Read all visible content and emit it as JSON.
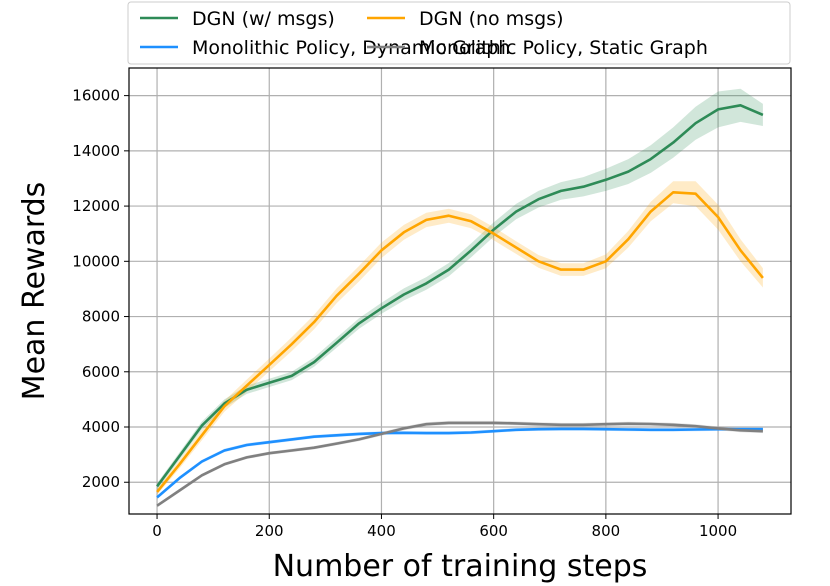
{
  "chart_data": {
    "type": "line",
    "title": "",
    "xlabel": "Number of training steps",
    "ylabel": "Mean Rewards",
    "xlim": [
      -50,
      1130
    ],
    "ylim": [
      850,
      17000
    ],
    "xticks": [
      0,
      200,
      400,
      600,
      800,
      1000
    ],
    "yticks": [
      2000,
      4000,
      6000,
      8000,
      10000,
      12000,
      14000,
      16000
    ],
    "grid": true,
    "legend_position": "top",
    "series": [
      {
        "name": "DGN (w/ msgs)",
        "color": "#2e8b57",
        "x": [
          0,
          40,
          80,
          120,
          160,
          200,
          240,
          280,
          320,
          360,
          400,
          440,
          480,
          520,
          560,
          600,
          640,
          680,
          720,
          760,
          800,
          840,
          880,
          920,
          960,
          1000,
          1040,
          1080
        ],
        "y": [
          1850,
          2950,
          4050,
          4850,
          5350,
          5600,
          5850,
          6350,
          7050,
          7750,
          8300,
          8800,
          9200,
          9700,
          10400,
          11150,
          11800,
          12250,
          12550,
          12700,
          12950,
          13250,
          13700,
          14300,
          15000,
          15500,
          15650,
          15300
        ],
        "band": [
          120,
          130,
          150,
          150,
          150,
          150,
          150,
          170,
          180,
          190,
          200,
          220,
          230,
          240,
          250,
          260,
          280,
          300,
          320,
          350,
          400,
          450,
          500,
          550,
          600,
          650,
          600,
          400
        ]
      },
      {
        "name": "DGN (no msgs)",
        "color": "#ffa500",
        "x": [
          0,
          40,
          80,
          120,
          160,
          200,
          240,
          280,
          320,
          360,
          400,
          440,
          480,
          520,
          560,
          600,
          640,
          680,
          720,
          760,
          800,
          840,
          880,
          920,
          960,
          1000,
          1040,
          1080
        ],
        "y": [
          1650,
          2650,
          3700,
          4750,
          5500,
          6250,
          7000,
          7800,
          8750,
          9550,
          10400,
          11050,
          11500,
          11650,
          11450,
          11000,
          10500,
          10000,
          9700,
          9700,
          10000,
          10800,
          11800,
          12500,
          12450,
          11600,
          10400,
          9400
        ],
        "band": [
          100,
          150,
          180,
          200,
          220,
          230,
          250,
          260,
          270,
          280,
          280,
          270,
          260,
          250,
          250,
          240,
          230,
          230,
          230,
          230,
          250,
          300,
          350,
          400,
          450,
          450,
          400,
          350
        ]
      },
      {
        "name": "Monolithic Policy, Dynamic Graph",
        "color": "#1e90ff",
        "x": [
          0,
          40,
          80,
          120,
          160,
          200,
          240,
          280,
          320,
          360,
          400,
          440,
          480,
          520,
          560,
          600,
          640,
          680,
          720,
          760,
          800,
          840,
          880,
          920,
          960,
          1000,
          1040,
          1080
        ],
        "y": [
          1450,
          2150,
          2750,
          3150,
          3350,
          3450,
          3550,
          3650,
          3700,
          3750,
          3780,
          3790,
          3780,
          3780,
          3800,
          3850,
          3900,
          3920,
          3930,
          3930,
          3920,
          3910,
          3900,
          3900,
          3910,
          3920,
          3920,
          3920
        ],
        "band": [
          60,
          60,
          60,
          60,
          60,
          60,
          60,
          60,
          60,
          60,
          60,
          60,
          60,
          60,
          60,
          60,
          60,
          60,
          60,
          60,
          60,
          60,
          60,
          60,
          60,
          60,
          60,
          60
        ]
      },
      {
        "name": "Monolithic Policy, Static Graph",
        "color": "#808080",
        "x": [
          0,
          40,
          80,
          120,
          160,
          200,
          240,
          280,
          320,
          360,
          400,
          440,
          480,
          520,
          560,
          600,
          640,
          680,
          720,
          760,
          800,
          840,
          880,
          920,
          960,
          1000,
          1040,
          1080
        ],
        "y": [
          1150,
          1700,
          2250,
          2650,
          2900,
          3050,
          3150,
          3250,
          3400,
          3550,
          3750,
          3950,
          4100,
          4150,
          4150,
          4150,
          4130,
          4100,
          4080,
          4080,
          4100,
          4120,
          4110,
          4080,
          4030,
          3950,
          3880,
          3850
        ],
        "band": [
          60,
          60,
          60,
          60,
          60,
          60,
          60,
          60,
          60,
          60,
          70,
          70,
          70,
          70,
          70,
          70,
          70,
          70,
          70,
          70,
          70,
          70,
          70,
          70,
          70,
          70,
          70,
          70
        ]
      }
    ],
    "legend_order": [
      0,
      2,
      1,
      3
    ]
  }
}
